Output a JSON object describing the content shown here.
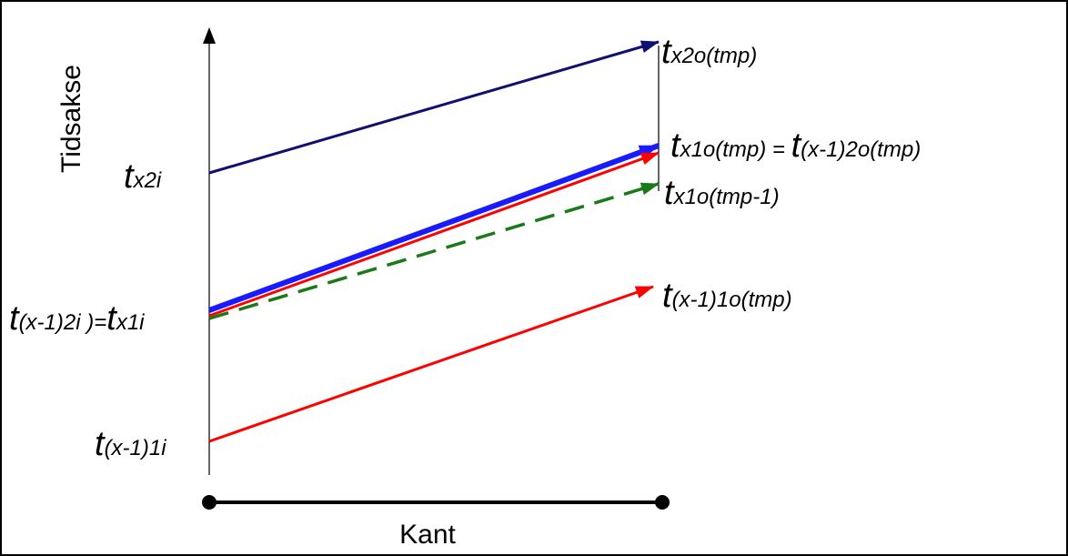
{
  "diagram": {
    "y_axis_label": "Tidsakse",
    "x_axis_label": "Kant",
    "left_labels": {
      "tx2i": {
        "t": "t",
        "sub": "x2i"
      },
      "t_x1_2i_eq": {
        "t1": "t",
        "sub1": "(x-1)2i )=",
        "t2": "t",
        "sub2": "x1i"
      },
      "t_x1_1i": {
        "t": "t",
        "sub": "(x-1)1i"
      }
    },
    "right_labels": {
      "tx2o": {
        "t": "t",
        "sub": "x2o(tmp)"
      },
      "tx1o_eq": {
        "t1": "t",
        "sub1": "x1o(tmp) = ",
        "t2": "t",
        "sub2": "(x-1)2o(tmp)"
      },
      "tx1o_prev": {
        "t": "t",
        "sub": "x1o(tmp-1)"
      },
      "t_x1_1o": {
        "t": "t",
        "sub": "(x-1)1o(tmp)"
      }
    },
    "colors": {
      "navy": "#101070",
      "blue": "#1a1aff",
      "red": "#ff0000",
      "green": "#1a7a1a",
      "black": "#000000"
    }
  }
}
